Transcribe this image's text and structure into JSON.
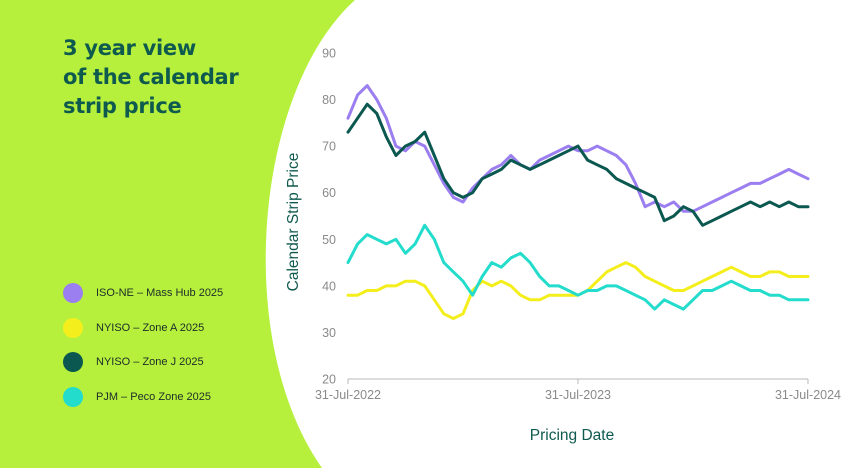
{
  "title_lines": [
    "3 year view",
    "of the calendar",
    "strip price"
  ],
  "colors": {
    "background": "#b6f03c",
    "panel": "#ffffff",
    "title": "#0e5a4f",
    "axis_text": "#8a8a8a",
    "axis_title": "#0e5a4f"
  },
  "legend": [
    {
      "label": "ISO-NE – Mass Hub 2025",
      "color": "#9b7ef0"
    },
    {
      "label": "NYISO – Zone A 2025",
      "color": "#f3ee1c"
    },
    {
      "label": "NYISO – Zone J 2025",
      "color": "#0b5850"
    },
    {
      "label": "PJM – Peco Zone 2025",
      "color": "#23dccc"
    }
  ],
  "chart_data": {
    "type": "line",
    "xlabel": "Pricing Date",
    "ylabel": "Calendar Strip Price",
    "ylim": [
      20,
      90
    ],
    "yticks": [
      20,
      30,
      40,
      50,
      60,
      70,
      80,
      90
    ],
    "xlim": [
      0,
      24
    ],
    "xtick_values": [
      0,
      12,
      24
    ],
    "xticks": [
      "31-Jul-2022",
      "31-Jul-2023",
      "31-Jul-2024"
    ],
    "grid": false,
    "series": [
      {
        "name": "ISO-NE – Mass Hub 2025",
        "color": "#9b7ef0",
        "x": [
          0,
          0.5,
          1,
          1.5,
          2,
          2.5,
          3,
          3.5,
          4,
          4.5,
          5,
          5.5,
          6,
          6.5,
          7,
          7.5,
          8,
          8.5,
          9,
          9.5,
          10,
          10.5,
          11,
          11.5,
          12,
          12.5,
          13,
          13.5,
          14,
          14.5,
          15,
          15.5,
          16,
          16.5,
          17,
          17.5,
          18,
          18.5,
          19,
          19.5,
          20,
          20.5,
          21,
          21.5,
          22,
          22.5,
          23,
          23.5,
          24
        ],
        "values": [
          76,
          81,
          83,
          80,
          76,
          70,
          69,
          71,
          70,
          66,
          62,
          59,
          58,
          61,
          63,
          65,
          66,
          68,
          66,
          65,
          67,
          68,
          69,
          70,
          69,
          69,
          70,
          69,
          68,
          66,
          62,
          57,
          58,
          57,
          58,
          56,
          56,
          57,
          58,
          59,
          60,
          61,
          62,
          62,
          63,
          64,
          65,
          64,
          63
        ]
      },
      {
        "name": "NYISO – Zone A 2025",
        "color": "#f3ee1c",
        "x": [
          0,
          0.5,
          1,
          1.5,
          2,
          2.5,
          3,
          3.5,
          4,
          4.5,
          5,
          5.5,
          6,
          6.5,
          7,
          7.5,
          8,
          8.5,
          9,
          9.5,
          10,
          10.5,
          11,
          11.5,
          12,
          12.5,
          13,
          13.5,
          14,
          14.5,
          15,
          15.5,
          16,
          16.5,
          17,
          17.5,
          18,
          18.5,
          19,
          19.5,
          20,
          20.5,
          21,
          21.5,
          22,
          22.5,
          23,
          23.5,
          24
        ],
        "values": [
          38,
          38,
          39,
          39,
          40,
          40,
          41,
          41,
          40,
          37,
          34,
          33,
          34,
          39,
          41,
          40,
          41,
          40,
          38,
          37,
          37,
          38,
          38,
          38,
          38,
          39,
          41,
          43,
          44,
          45,
          44,
          42,
          41,
          40,
          39,
          39,
          40,
          41,
          42,
          43,
          44,
          43,
          42,
          42,
          43,
          43,
          42,
          42,
          42
        ]
      },
      {
        "name": "NYISO – Zone J 2025",
        "color": "#0b5850",
        "x": [
          0,
          0.5,
          1,
          1.5,
          2,
          2.5,
          3,
          3.5,
          4,
          4.5,
          5,
          5.5,
          6,
          6.5,
          7,
          7.5,
          8,
          8.5,
          9,
          9.5,
          10,
          10.5,
          11,
          11.5,
          12,
          12.5,
          13,
          13.5,
          14,
          14.5,
          15,
          15.5,
          16,
          16.5,
          17,
          17.5,
          18,
          18.5,
          19,
          19.5,
          20,
          20.5,
          21,
          21.5,
          22,
          22.5,
          23,
          23.5,
          24
        ],
        "values": [
          73,
          76,
          79,
          77,
          72,
          68,
          70,
          71,
          73,
          68,
          63,
          60,
          59,
          60,
          63,
          64,
          65,
          67,
          66,
          65,
          66,
          67,
          68,
          69,
          70,
          67,
          66,
          65,
          63,
          62,
          61,
          60,
          59,
          54,
          55,
          57,
          56,
          53,
          54,
          55,
          56,
          57,
          58,
          57,
          58,
          57,
          58,
          57,
          57
        ]
      },
      {
        "name": "PJM – Peco Zone 2025",
        "color": "#23dccc",
        "x": [
          0,
          0.5,
          1,
          1.5,
          2,
          2.5,
          3,
          3.5,
          4,
          4.5,
          5,
          5.5,
          6,
          6.5,
          7,
          7.5,
          8,
          8.5,
          9,
          9.5,
          10,
          10.5,
          11,
          11.5,
          12,
          12.5,
          13,
          13.5,
          14,
          14.5,
          15,
          15.5,
          16,
          16.5,
          17,
          17.5,
          18,
          18.5,
          19,
          19.5,
          20,
          20.5,
          21,
          21.5,
          22,
          22.5,
          23,
          23.5,
          24
        ],
        "values": [
          45,
          49,
          51,
          50,
          49,
          50,
          47,
          49,
          53,
          50,
          45,
          43,
          41,
          38,
          42,
          45,
          44,
          46,
          47,
          45,
          42,
          40,
          40,
          39,
          38,
          39,
          39,
          40,
          40,
          39,
          38,
          37,
          35,
          37,
          36,
          35,
          37,
          39,
          39,
          40,
          41,
          40,
          39,
          39,
          38,
          38,
          37,
          37,
          37
        ]
      }
    ]
  }
}
